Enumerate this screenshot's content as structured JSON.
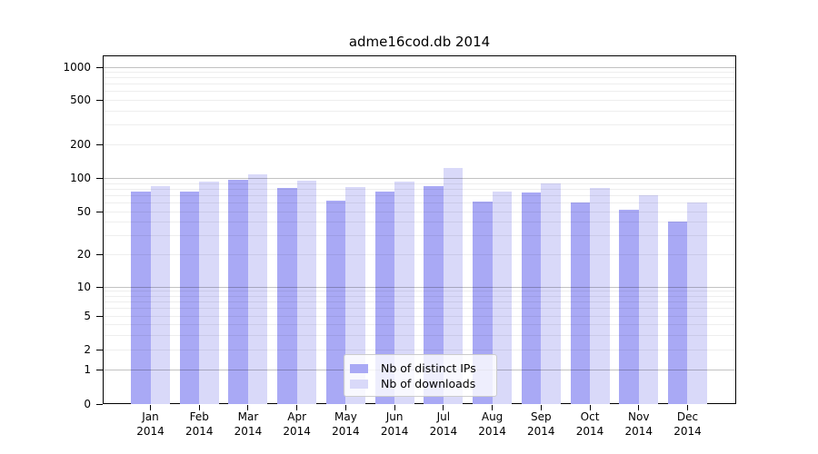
{
  "chart_data": {
    "type": "bar",
    "title": "adme16cod.db 2014",
    "xlabel": "",
    "ylabel": "",
    "yscale": "symlog",
    "ylim": [
      0,
      1000
    ],
    "grid": true,
    "legend_position": "inside-bottom-center",
    "categories": [
      "Jan 2014",
      "Feb 2014",
      "Mar 2014",
      "Apr 2014",
      "May 2014",
      "Jun 2014",
      "Jul 2014",
      "Aug 2014",
      "Sep 2014",
      "Oct 2014",
      "Nov 2014",
      "Dec 2014"
    ],
    "x_ticks": [
      {
        "month": "Jan",
        "year": "2014"
      },
      {
        "month": "Feb",
        "year": "2014"
      },
      {
        "month": "Mar",
        "year": "2014"
      },
      {
        "month": "Apr",
        "year": "2014"
      },
      {
        "month": "May",
        "year": "2014"
      },
      {
        "month": "Jun",
        "year": "2014"
      },
      {
        "month": "Jul",
        "year": "2014"
      },
      {
        "month": "Aug",
        "year": "2014"
      },
      {
        "month": "Sep",
        "year": "2014"
      },
      {
        "month": "Oct",
        "year": "2014"
      },
      {
        "month": "Nov",
        "year": "2014"
      },
      {
        "month": "Dec",
        "year": "2014"
      }
    ],
    "yticks": [
      0,
      1,
      2,
      5,
      10,
      20,
      50,
      100,
      200,
      500,
      1000
    ],
    "ytick_labels": [
      "0",
      "1",
      "2",
      "5",
      "10",
      "20",
      "50",
      "100",
      "200",
      "500",
      "1000"
    ],
    "series": [
      {
        "name": "Nb of distinct IPs",
        "color": "#a9a9f5",
        "values": [
          75,
          75,
          96,
          82,
          63,
          75,
          85,
          62,
          74,
          60,
          52,
          40
        ]
      },
      {
        "name": "Nb of downloads",
        "color": "#d9d9f9",
        "values": [
          84,
          93,
          108,
          95,
          83,
          93,
          123,
          76,
          90,
          82,
          70,
          60
        ]
      }
    ]
  }
}
